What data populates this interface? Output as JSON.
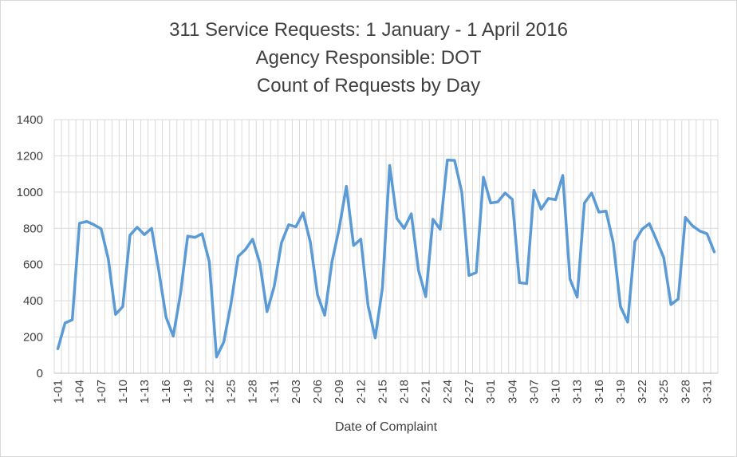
{
  "chart_data": {
    "type": "line",
    "title_lines": [
      "311 Service Requests: 1 January - 1 April 2016",
      "Agency Responsible:  DOT",
      "Count of Requests by Day"
    ],
    "xlabel": "Date of Complaint",
    "ylabel": "",
    "ylim": [
      0,
      1400
    ],
    "yticks": [
      0,
      200,
      400,
      600,
      800,
      1000,
      1200,
      1400
    ],
    "grid": true,
    "legend": "none",
    "line_color": "#5b9bd5",
    "x": [
      "1-01",
      "1-02",
      "1-03",
      "1-04",
      "1-05",
      "1-06",
      "1-07",
      "1-08",
      "1-09",
      "1-10",
      "1-11",
      "1-12",
      "1-13",
      "1-14",
      "1-15",
      "1-16",
      "1-17",
      "1-18",
      "1-19",
      "1-20",
      "1-21",
      "1-22",
      "1-23",
      "1-24",
      "1-25",
      "1-26",
      "1-27",
      "1-28",
      "1-29",
      "1-30",
      "1-31",
      "2-01",
      "2-02",
      "2-03",
      "2-04",
      "2-05",
      "2-06",
      "2-07",
      "2-08",
      "2-09",
      "2-10",
      "2-11",
      "2-12",
      "2-13",
      "2-14",
      "2-15",
      "2-16",
      "2-17",
      "2-18",
      "2-19",
      "2-20",
      "2-21",
      "2-22",
      "2-23",
      "2-24",
      "2-25",
      "2-26",
      "2-27",
      "2-28",
      "2-29",
      "3-01",
      "3-02",
      "3-03",
      "3-04",
      "3-05",
      "3-06",
      "3-07",
      "3-08",
      "3-09",
      "3-10",
      "3-11",
      "3-12",
      "3-13",
      "3-14",
      "3-15",
      "3-16",
      "3-17",
      "3-18",
      "3-19",
      "3-20",
      "3-21",
      "3-22",
      "3-23",
      "3-24",
      "3-25",
      "3-26",
      "3-27",
      "3-28",
      "3-29",
      "3-30",
      "3-31",
      "4-01"
    ],
    "tick_labels": [
      "1-01",
      "1-04",
      "1-07",
      "1-10",
      "1-13",
      "1-16",
      "1-19",
      "1-22",
      "1-25",
      "1-28",
      "1-31",
      "2-03",
      "2-06",
      "2-09",
      "2-12",
      "2-15",
      "2-18",
      "2-21",
      "2-24",
      "2-27",
      "3-01",
      "3-04",
      "3-07",
      "3-10",
      "3-13",
      "3-16",
      "3-19",
      "3-22",
      "3-25",
      "3-28",
      "3-31"
    ],
    "series": [
      {
        "values": [
          135,
          278,
          295,
          828,
          838,
          820,
          797,
          630,
          325,
          368,
          762,
          806,
          765,
          800,
          565,
          310,
          205,
          438,
          757,
          750,
          770,
          615,
          90,
          172,
          383,
          645,
          683,
          740,
          608,
          340,
          480,
          720,
          820,
          808,
          885,
          725,
          433,
          320,
          615,
          800,
          1032,
          705,
          740,
          375,
          195,
          472,
          1147,
          855,
          800,
          880,
          568,
          423,
          850,
          795,
          1177,
          1175,
          1000,
          540,
          556,
          1082,
          940,
          946,
          995,
          960,
          500,
          495,
          1010,
          906,
          965,
          958,
          1092,
          520,
          420,
          940,
          995,
          890,
          895,
          720,
          368,
          282,
          727,
          795,
          826,
          735,
          638,
          379,
          410,
          860,
          813,
          785,
          770,
          670
        ]
      }
    ]
  }
}
